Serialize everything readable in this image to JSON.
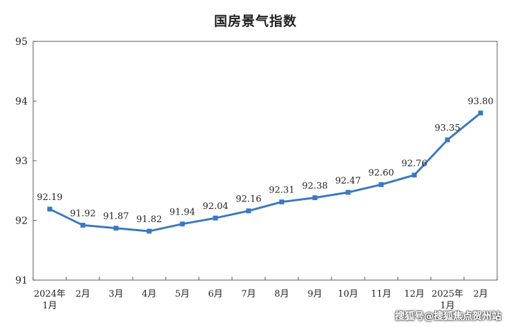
{
  "chart_data": {
    "type": "line",
    "title": "国房景气指数",
    "xlabel": "",
    "ylabel": "",
    "ylim": [
      91,
      95
    ],
    "yticks": [
      "91",
      "92",
      "93",
      "94",
      "95"
    ],
    "categories": [
      [
        "2024年",
        "1月"
      ],
      [
        "2月"
      ],
      [
        "3月"
      ],
      [
        "4月"
      ],
      [
        "5月"
      ],
      [
        "6月"
      ],
      [
        "7月"
      ],
      [
        "8月"
      ],
      [
        "9月"
      ],
      [
        "10月"
      ],
      [
        "11月"
      ],
      [
        "12月"
      ],
      [
        "2025年",
        "1月"
      ],
      [
        "2月"
      ]
    ],
    "values": [
      92.19,
      91.92,
      91.87,
      91.82,
      91.94,
      92.04,
      92.16,
      92.31,
      92.38,
      92.47,
      92.6,
      92.76,
      93.35,
      93.8
    ],
    "value_labels": [
      "92.19",
      "91.92",
      "91.87",
      "91.82",
      "91.94",
      "92.04",
      "92.16",
      "92.31",
      "92.38",
      "92.47",
      "92.60",
      "92.76",
      "93.35",
      "93.80"
    ],
    "grid": false,
    "line_color": "#3a78c3"
  },
  "watermark": "搜狐号@搜狐焦点贺州站"
}
